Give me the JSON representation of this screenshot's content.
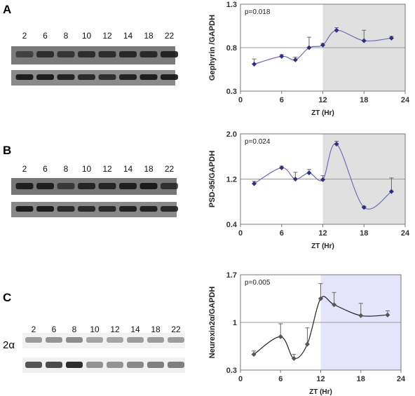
{
  "panels": [
    {
      "letter": "A",
      "blot": {
        "lanes": [
          "2",
          "6",
          "8",
          "10",
          "12",
          "14",
          "18",
          "22"
        ],
        "row_label": ""
      },
      "chart": {
        "type": "line",
        "x": [
          2,
          6,
          8,
          10,
          12,
          14,
          18,
          22
        ],
        "values": [
          0.61,
          0.7,
          0.66,
          0.8,
          0.83,
          1.0,
          0.88,
          0.91
        ],
        "err": [
          0.06,
          0.02,
          0.03,
          0.12,
          0.02,
          0.03,
          0.12,
          0.02
        ],
        "pvalue": "p=0.018",
        "xlabel": "ZT (Hr)",
        "ylabel": "Gephyrin /GAPDH",
        "xticks": [
          "0",
          "6",
          "12",
          "18",
          "24"
        ],
        "yticks": [
          "0.3",
          "0.8",
          "1.3"
        ],
        "xlim": [
          0,
          24
        ],
        "ylim": [
          0.3,
          1.3
        ],
        "refline": 0.8,
        "shade_from": 12,
        "shade_color": "#e0e0e0",
        "line_color": "#6f6fb4",
        "marker_color": "#2f2f80"
      }
    },
    {
      "letter": "B",
      "blot": {
        "lanes": [
          "2",
          "6",
          "8",
          "10",
          "12",
          "14",
          "18",
          "22"
        ],
        "row_label": ""
      },
      "chart": {
        "type": "line",
        "x": [
          2,
          6,
          8,
          10,
          12,
          14,
          18,
          22
        ],
        "values": [
          1.12,
          1.4,
          1.2,
          1.31,
          1.19,
          1.82,
          0.7,
          0.98
        ],
        "err": [
          0.04,
          0.03,
          0.12,
          0.06,
          0.07,
          0.05,
          0.02,
          0.24
        ],
        "pvalue": "p=0.024",
        "xlabel": "ZT (Hr)",
        "ylabel": "PSD-95/GAPDH",
        "xticks": [
          "0",
          "6",
          "12",
          "18",
          "24"
        ],
        "yticks": [
          "0.4",
          "1.2",
          "2.0"
        ],
        "xlim": [
          0,
          24
        ],
        "ylim": [
          0.4,
          2.0
        ],
        "refline": 1.2,
        "shade_from": 12,
        "shade_color": "#e0e0e0",
        "line_color": "#6f6fb4",
        "marker_color": "#2f2f80"
      }
    },
    {
      "letter": "C",
      "blot": {
        "lanes": [
          "2",
          "6",
          "8",
          "10",
          "12",
          "14",
          "18",
          "22"
        ],
        "row_label": "2α"
      },
      "chart": {
        "type": "line",
        "x": [
          2,
          6,
          8,
          10,
          12,
          14,
          18,
          22
        ],
        "values": [
          0.53,
          0.79,
          0.47,
          0.68,
          1.35,
          1.26,
          1.1,
          1.11
        ],
        "err": [
          0.05,
          0.19,
          0.06,
          0.24,
          0.22,
          0.18,
          0.18,
          0.06
        ],
        "pvalue": "p=0.005",
        "xlabel": "ZT (Hr)",
        "ylabel": "Neurexin2α/GAPDH",
        "xticks": [
          "0",
          "6",
          "12",
          "18",
          "24"
        ],
        "yticks": [
          "0.3",
          "1",
          "1.7"
        ],
        "xlim": [
          0,
          24
        ],
        "ylim": [
          0.3,
          1.7
        ],
        "refline": 1.0,
        "shade_from": 12,
        "shade_color": "#e4e4fa",
        "line_color": "#222222",
        "marker_color": "#555555"
      }
    }
  ]
}
